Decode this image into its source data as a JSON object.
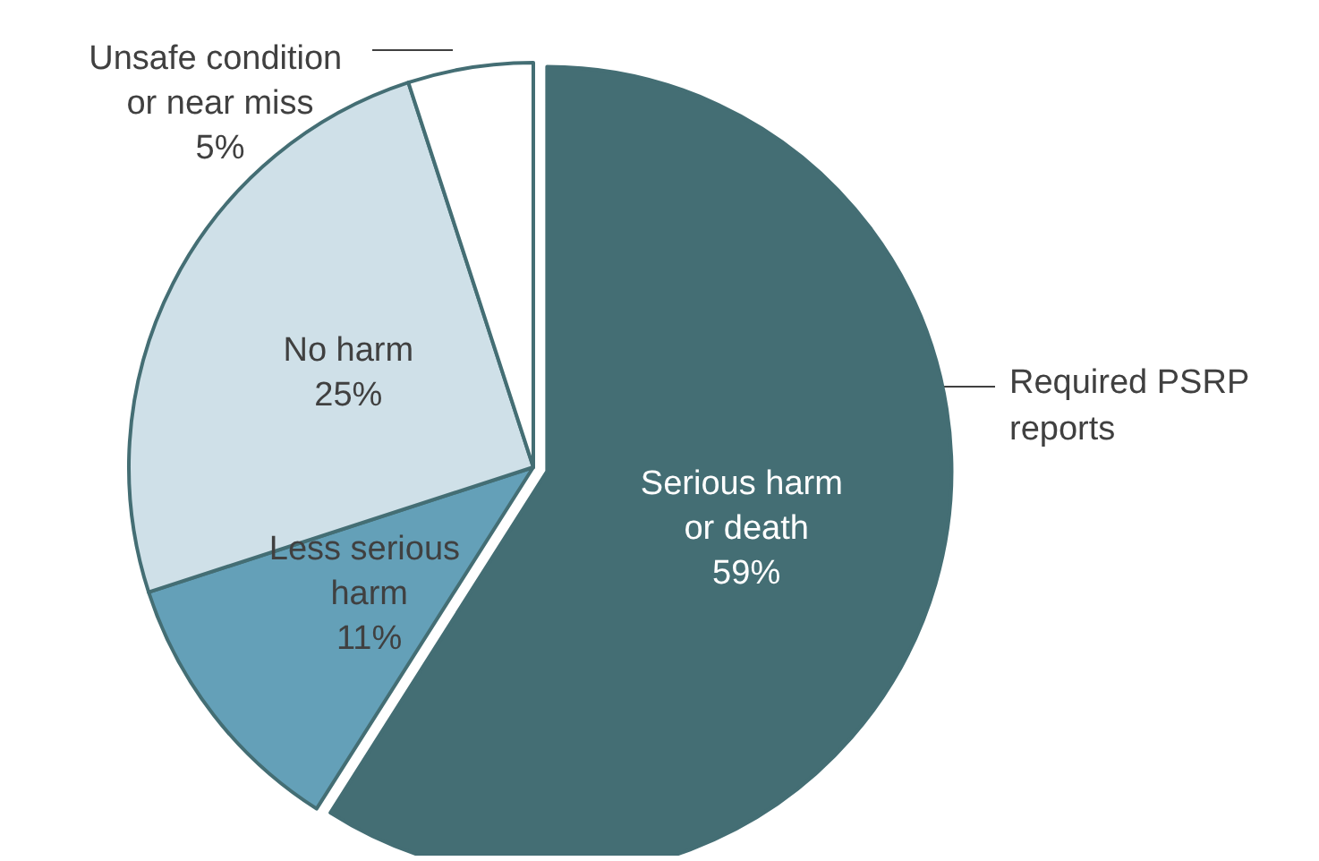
{
  "chart_data": {
    "type": "pie",
    "categories": [
      "Serious harm or death",
      "Less serious harm",
      "No harm",
      "Unsafe condition or near miss"
    ],
    "values": [
      59,
      11,
      25,
      5
    ],
    "colors": [
      "#446e74",
      "#64a0b8",
      "#cfe0e8",
      "#ffffff"
    ],
    "value_labels": [
      "59%",
      "11%",
      "25%",
      "5%"
    ],
    "legend": false,
    "annotations": [
      "Required PSRP reports"
    ]
  }
}
